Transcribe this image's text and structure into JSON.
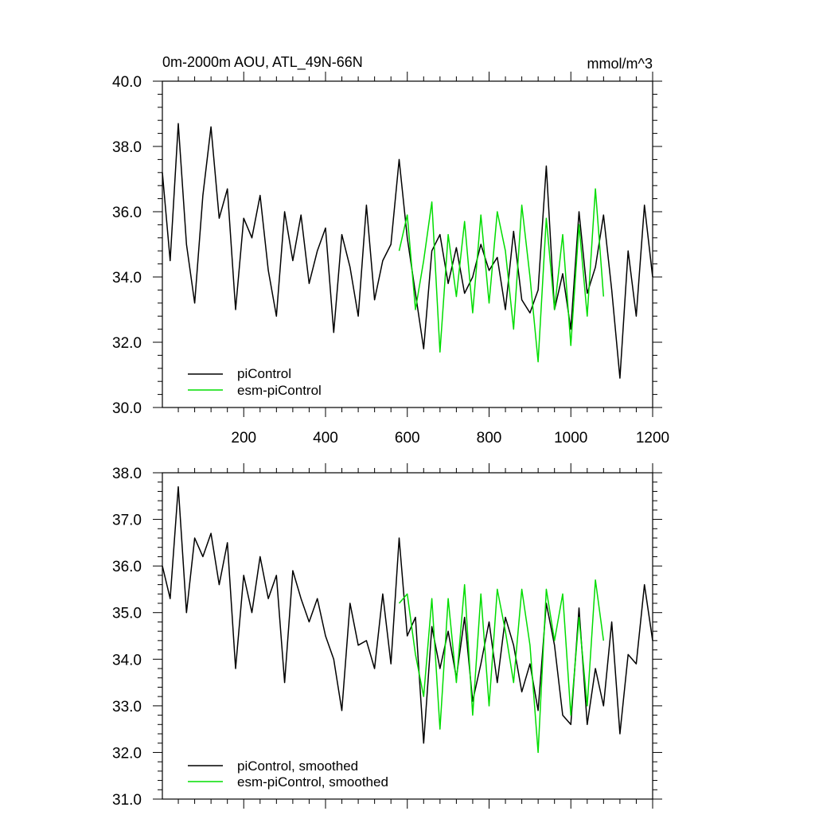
{
  "colors": {
    "piControl": "#000000",
    "esm_piControl": "#00dd00",
    "axes": "#000000",
    "background": "#ffffff"
  },
  "chart_data": [
    {
      "type": "line",
      "title": "0m-2000m AOU, ATL_49N-66N",
      "units": "mmol/m^3",
      "xlabel": "",
      "ylabel": "",
      "xlim": [
        1,
        1200
      ],
      "ylim": [
        30,
        40
      ],
      "x_ticks": [
        200,
        400,
        600,
        800,
        1000,
        1200
      ],
      "x_tick_labels": [
        "200",
        "400",
        "600",
        "800",
        "1000",
        "1200"
      ],
      "y_ticks": [
        30,
        32,
        34,
        36,
        38,
        40
      ],
      "y_tick_labels": [
        "30.0",
        "32.0",
        "34.0",
        "36.0",
        "38.0",
        "40.0"
      ],
      "grid": false,
      "legend_position": "bottom-left",
      "series": [
        {
          "name": "piControl",
          "color": "#000000",
          "x": [
            1,
            20,
            40,
            60,
            80,
            100,
            120,
            140,
            160,
            180,
            200,
            220,
            240,
            260,
            280,
            300,
            320,
            340,
            360,
            380,
            400,
            420,
            440,
            460,
            480,
            500,
            520,
            540,
            560,
            580,
            600,
            620,
            640,
            660,
            680,
            700,
            720,
            740,
            760,
            780,
            800,
            820,
            840,
            860,
            880,
            900,
            920,
            940,
            960,
            980,
            1000,
            1020,
            1040,
            1060,
            1080,
            1100,
            1120,
            1140,
            1160,
            1180,
            1200
          ],
          "y": [
            37.2,
            34.5,
            38.7,
            35.0,
            33.2,
            36.5,
            38.6,
            35.8,
            36.7,
            33.0,
            35.8,
            35.2,
            36.5,
            34.2,
            32.8,
            36.0,
            34.5,
            35.9,
            33.8,
            34.8,
            35.5,
            32.3,
            35.3,
            34.3,
            32.8,
            36.2,
            33.3,
            34.5,
            35.0,
            37.6,
            35.2,
            33.5,
            31.8,
            34.8,
            35.3,
            33.8,
            34.9,
            33.5,
            34.0,
            35.0,
            34.2,
            34.6,
            33.0,
            35.4,
            33.3,
            32.9,
            33.6,
            37.4,
            33.0,
            34.1,
            32.4,
            36.0,
            33.5,
            34.3,
            35.9,
            33.6,
            30.9,
            34.8,
            32.8,
            36.2,
            34.0
          ]
        },
        {
          "name": "esm-piControl",
          "color": "#00dd00",
          "x": [
            580,
            600,
            620,
            640,
            660,
            680,
            700,
            720,
            740,
            760,
            780,
            800,
            820,
            840,
            860,
            880,
            900,
            920,
            940,
            960,
            980,
            1000,
            1020,
            1040,
            1060,
            1080
          ],
          "y": [
            34.8,
            35.9,
            33.0,
            34.5,
            36.3,
            31.7,
            35.3,
            33.4,
            35.7,
            32.9,
            35.9,
            33.2,
            36.0,
            34.8,
            32.4,
            36.2,
            34.0,
            31.4,
            35.8,
            33.0,
            35.3,
            31.9,
            35.6,
            32.8,
            36.7,
            33.4
          ]
        }
      ]
    },
    {
      "type": "line",
      "title": "",
      "xlabel": "",
      "ylabel": "",
      "xlim": [
        1,
        1200
      ],
      "ylim": [
        31,
        38
      ],
      "x_ticks": [
        200,
        400,
        600,
        800,
        1000,
        1200
      ],
      "y_ticks": [
        31,
        32,
        33,
        34,
        35,
        36,
        37,
        38
      ],
      "y_tick_labels": [
        "31.0",
        "32.0",
        "33.0",
        "34.0",
        "35.0",
        "36.0",
        "37.0",
        "38.0"
      ],
      "grid": false,
      "legend_position": "bottom-left",
      "series": [
        {
          "name": "piControl, smoothed",
          "color": "#000000",
          "x": [
            1,
            20,
            40,
            60,
            80,
            100,
            120,
            140,
            160,
            180,
            200,
            220,
            240,
            260,
            280,
            300,
            320,
            340,
            360,
            380,
            400,
            420,
            440,
            460,
            480,
            500,
            520,
            540,
            560,
            580,
            600,
            620,
            640,
            660,
            680,
            700,
            720,
            740,
            760,
            780,
            800,
            820,
            840,
            860,
            880,
            900,
            920,
            940,
            960,
            980,
            1000,
            1020,
            1040,
            1060,
            1080,
            1100,
            1120,
            1140,
            1160,
            1180,
            1200
          ],
          "y": [
            36.0,
            35.3,
            37.7,
            35.0,
            36.6,
            36.2,
            36.7,
            35.6,
            36.5,
            33.8,
            35.8,
            35.0,
            36.2,
            35.3,
            35.8,
            33.5,
            35.9,
            35.3,
            34.8,
            35.3,
            34.5,
            34.0,
            32.9,
            35.2,
            34.3,
            34.4,
            33.8,
            35.4,
            33.9,
            36.6,
            34.5,
            34.9,
            32.2,
            34.7,
            33.8,
            34.6,
            33.6,
            34.9,
            33.1,
            33.9,
            34.8,
            33.5,
            34.9,
            34.3,
            33.3,
            33.9,
            32.9,
            35.2,
            34.3,
            32.8,
            32.6,
            35.1,
            32.6,
            33.8,
            33.0,
            34.8,
            32.4,
            34.1,
            33.9,
            35.6,
            34.4
          ]
        },
        {
          "name": "esm-piControl, smoothed",
          "color": "#00dd00",
          "x": [
            580,
            600,
            620,
            640,
            660,
            680,
            700,
            720,
            740,
            760,
            780,
            800,
            820,
            840,
            860,
            880,
            900,
            920,
            940,
            960,
            980,
            1000,
            1020,
            1040,
            1060,
            1080
          ],
          "y": [
            35.2,
            35.4,
            34.1,
            33.2,
            35.3,
            32.5,
            35.3,
            33.5,
            35.6,
            32.8,
            35.4,
            33.0,
            35.5,
            34.6,
            33.5,
            35.5,
            34.3,
            32.0,
            35.5,
            34.4,
            35.4,
            32.8,
            34.9,
            33.0,
            35.7,
            34.4
          ]
        }
      ]
    }
  ]
}
